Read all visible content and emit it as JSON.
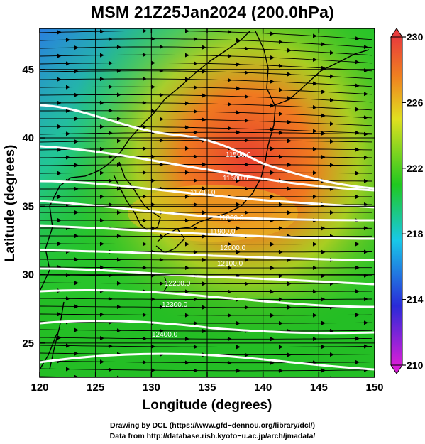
{
  "title": "MSM 21Z25Jan2024 (200.0hPa)",
  "map": {
    "x_axis": {
      "label": "Longitude (degrees)",
      "range": [
        120,
        150
      ],
      "ticks": [
        "120",
        "125",
        "130",
        "135",
        "140",
        "145",
        "150"
      ]
    },
    "y_axis": {
      "label": "Latitude  (degrees)",
      "range": [
        22.5,
        48
      ],
      "ticks": [
        "25",
        "30",
        "35",
        "40",
        "45"
      ]
    },
    "grid": "on",
    "field": "temperature (shaded), geopotential height (white contours), wind (streamlines)",
    "colorbar": {
      "ticks": [
        "210",
        "214",
        "218",
        "222",
        "226",
        "230"
      ],
      "min": 210,
      "max": 230,
      "colors": [
        "#d81ed8",
        "#2a2ad8",
        "#18c8e8",
        "#20c820",
        "#e0e020",
        "#f08020",
        "#e83c3c"
      ]
    },
    "contour_labels": [
      "11500.0",
      "11600.0",
      "11700.0",
      "11800.0",
      "11900.0",
      "12000.0",
      "12100.0",
      "12200.0",
      "12300.0",
      "12400.0"
    ]
  },
  "credits": {
    "line1": "Drawing by DCL (https://www.gfd−dennou.org/library/dcl/)",
    "line2": "Data from http://database.rish.kyoto−u.ac.jp/arch/jmadata/"
  }
}
